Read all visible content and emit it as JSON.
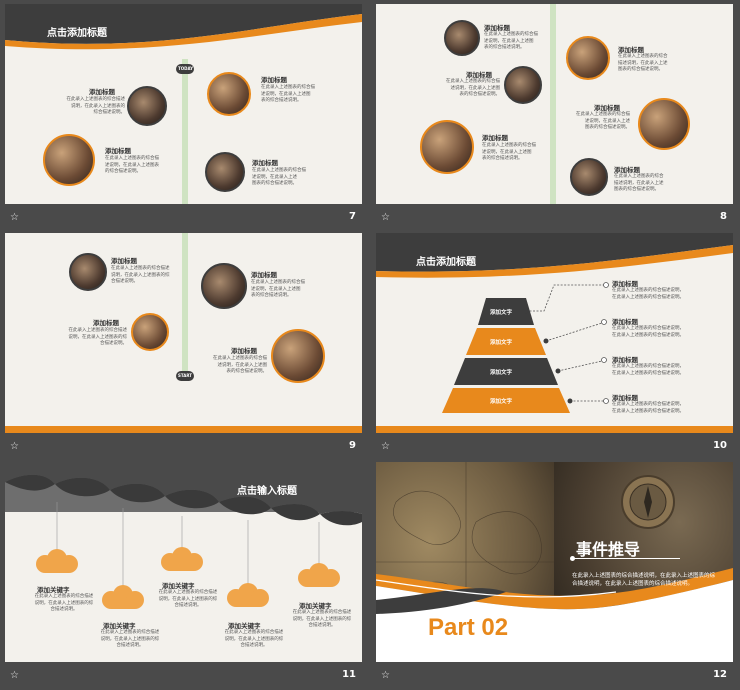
{
  "colors": {
    "accent": "#e8891c",
    "dark": "#3d3d3d",
    "bg": "#f3f1ec",
    "footer": "#4a4a4a"
  },
  "footer_icon": "star-icon",
  "placeholder_desc": "在此录入上述图表的综合描述说明，在此录入上述图表的综合描述说明。",
  "s7": {
    "number": "7",
    "title": "点击添加标题",
    "today": "TODAY",
    "items": [
      {
        "t": "添加标题",
        "d": "在此录入上述图表的综合描述\n说明，在此录入上述图表的\n综合描述说明。"
      },
      {
        "t": "添加标题",
        "d": "在此录入上述图表的综合描\n述说明，在此录入上述图表\n的综合描述说明。"
      },
      {
        "t": "添加标题",
        "d": "在此录入上述图表的综合描\n述说明，在此录入上述图\n表的综合描述说明。"
      },
      {
        "t": "添加标题",
        "d": "在此录入上述图表的综合描\n述说明，在此录入上述\n图表的综合描述说明。"
      }
    ]
  },
  "s8": {
    "number": "8",
    "items": [
      {
        "t": "添加标题",
        "d": "在此录入上述图表的综合描\n述说明，在此录入上述图\n表的综合描述说明。"
      },
      {
        "t": "添加标题",
        "d": "在此录入上述图表的综合\n描述说明，在此录入上述\n图表的综合描述说明。"
      },
      {
        "t": "添加标题",
        "d": "在此录入上述图表的综合描\n述说明，在此录入上述图\n表的综合描述说明。"
      },
      {
        "t": "添加标题",
        "d": "在此录入上述图表的综合描\n述说明，在此录入上述\n图表的综合描述说明。"
      },
      {
        "t": "添加标题",
        "d": "在此录入上述图表的综合描\n述说明，在此录入上述图\n表的综合描述说明。"
      },
      {
        "t": "添加标题",
        "d": "在此录入上述图表的综合\n描述说明，在此录入上述\n图表的综合描述说明。"
      }
    ]
  },
  "s9": {
    "number": "9",
    "start": "START",
    "items": [
      {
        "t": "添加标题",
        "d": "在此录入上述图表的综合描述\n说明，在此录入上述图表的综\n合描述说明。"
      },
      {
        "t": "添加标题",
        "d": "在此录入上述图表的综合描\n述说明，在此录入上述图\n表的综合描述说明。"
      },
      {
        "t": "添加标题",
        "d": "在此录入上述图表的综合描述\n说明，在此录入上述图表的综\n合描述说明。"
      },
      {
        "t": "添加标题",
        "d": "在此录入上述图表的综合描\n述说明，在此录入上述图\n表的综合描述说明。"
      }
    ]
  },
  "s10": {
    "number": "10",
    "title": "点击添加标题",
    "levels": [
      "添加文字",
      "添加文字",
      "添加文字",
      "添加文字"
    ],
    "items": [
      {
        "t": "添加标题",
        "d": "在此录入上述图表的综合描述说明，\n在此录入上述图表的综合描述说明。"
      },
      {
        "t": "添加标题",
        "d": "在此录入上述图表的综合描述说明，\n在此录入上述图表的综合描述说明。"
      },
      {
        "t": "添加标题",
        "d": "在此录入上述图表的综合描述说明，\n在此录入上述图表的综合描述说明。"
      },
      {
        "t": "添加标题",
        "d": "在此录入上述图表的综合描述说明，\n在此录入上述图表的综合描述说明。"
      }
    ]
  },
  "s11": {
    "number": "11",
    "title": "点击输入标题",
    "items": [
      {
        "t": "添加关键字",
        "d": "在此录入上述图表的综合描述\n说明，在此录入上述图表的综\n合描述说明。"
      },
      {
        "t": "添加关键字",
        "d": "在此录入上述图表的综合描述\n说明，在此录入上述图表的综\n合描述说明。"
      },
      {
        "t": "添加关键字",
        "d": "在此录入上述图表的综合描述\n说明，在此录入上述图表的综\n合描述说明。"
      },
      {
        "t": "添加关键字",
        "d": "在此录入上述图表的综合描述\n说明，在此录入上述图表的综\n合描述说明。"
      },
      {
        "t": "添加关键字",
        "d": "在此录入上述图表的综合描述\n说明，在此录入上述图表的综\n合描述说明。"
      }
    ]
  },
  "s12": {
    "number": "12",
    "part": "Part 02",
    "title": "事件推导",
    "desc": "在此录入上述图表的综合描述说明，在此录入上述图表的综合描述说明，在此录入上述图表的综合描述说明。"
  }
}
